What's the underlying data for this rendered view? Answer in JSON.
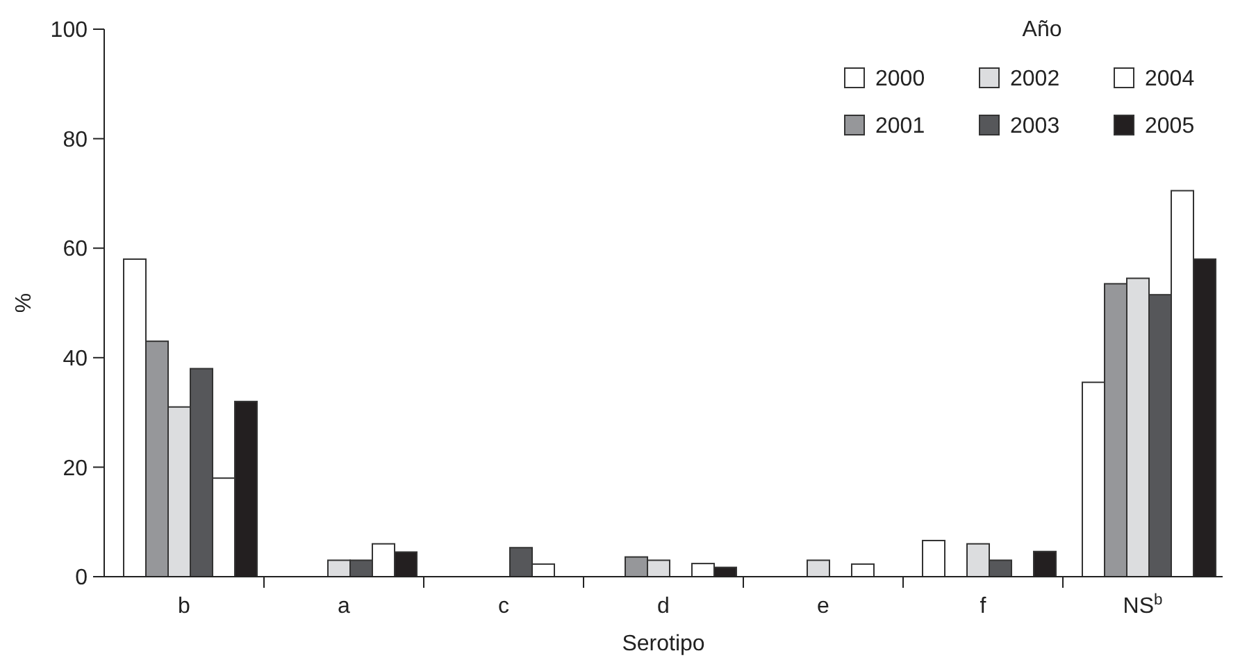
{
  "chart_data": {
    "type": "bar",
    "xlabel": "Serotipo",
    "ylabel": "%",
    "legend_title": "Año",
    "legend": "top right",
    "grid": false,
    "categories": [
      "b",
      "a",
      "c",
      "d",
      "e",
      "f",
      "NS$^{b}$"
    ],
    "ylim": [
      0,
      100
    ],
    "yticks": [
      0,
      20,
      40,
      60,
      80,
      100
    ],
    "series": [
      {
        "name": "2000",
        "color": "#ffffff",
        "values": [
          58,
          0,
          0,
          0,
          0,
          6.6,
          35.5
        ]
      },
      {
        "name": "2001",
        "color": "#96979a",
        "values": [
          43,
          0,
          0,
          3.6,
          0,
          0,
          53.5
        ]
      },
      {
        "name": "2002",
        "color": "#dcdddf",
        "values": [
          31,
          3,
          0,
          3,
          3,
          6,
          54.5
        ]
      },
      {
        "name": "2003",
        "color": "#56575a",
        "values": [
          38,
          3,
          5.3,
          0,
          0,
          3,
          51.5
        ]
      },
      {
        "name": "2004",
        "color": "#ffffff",
        "values": [
          18,
          6,
          2.3,
          2.4,
          2.3,
          0,
          70.5
        ]
      },
      {
        "name": "2005",
        "color": "#231f20",
        "values": [
          32,
          4.5,
          0,
          1.7,
          0,
          4.6,
          58
        ]
      }
    ]
  }
}
